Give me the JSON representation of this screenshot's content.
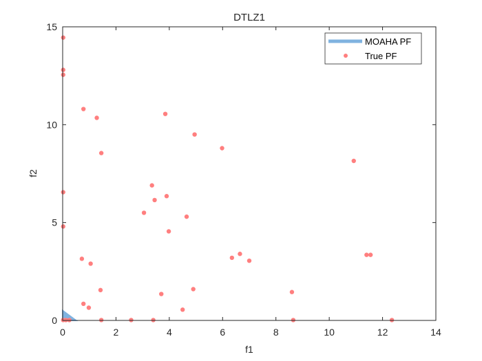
{
  "chart_data": {
    "type": "scatter",
    "title": "DTLZ1",
    "xlabel": "f1",
    "ylabel": "f2",
    "xlim": [
      0,
      14
    ],
    "ylim": [
      0,
      15
    ],
    "xticks": [
      0,
      2,
      4,
      6,
      8,
      10,
      12,
      14
    ],
    "yticks": [
      0,
      5,
      10,
      15
    ],
    "grid": false,
    "legend_position": "top-right",
    "series": [
      {
        "name": "MOAHA PF",
        "kind": "area",
        "color": "#80B3E0",
        "x": [
          0,
          0,
          0.5
        ],
        "y": [
          0,
          0.5,
          0
        ]
      },
      {
        "name": "True PF",
        "kind": "scatter",
        "color": "#FF7F7F",
        "x": [
          0.02,
          0.02,
          0.02,
          0.78,
          1.28,
          3.85,
          4.95,
          5.98,
          10.92,
          1.45,
          3.35,
          0.02,
          3.45,
          3.9,
          0.02,
          3.05,
          4.65,
          3.98,
          0.72,
          1.05,
          6.65,
          6.35,
          7.0,
          11.4,
          11.55,
          1.42,
          3.7,
          4.9,
          8.6,
          0.78,
          0.98,
          4.5,
          0.02,
          0.12,
          0.25,
          1.45,
          2.57,
          3.4,
          8.65,
          12.35
        ],
        "y": [
          14.45,
          12.8,
          12.55,
          10.8,
          10.35,
          10.55,
          9.5,
          8.8,
          8.15,
          8.55,
          6.9,
          6.55,
          6.15,
          6.35,
          4.8,
          5.5,
          5.3,
          4.55,
          3.15,
          2.9,
          3.4,
          3.2,
          3.05,
          3.35,
          3.35,
          1.55,
          1.35,
          1.6,
          1.45,
          0.85,
          0.65,
          0.55,
          0.02,
          0.02,
          0.02,
          0.02,
          0.02,
          0.02,
          0.02,
          0.02
        ]
      }
    ]
  }
}
